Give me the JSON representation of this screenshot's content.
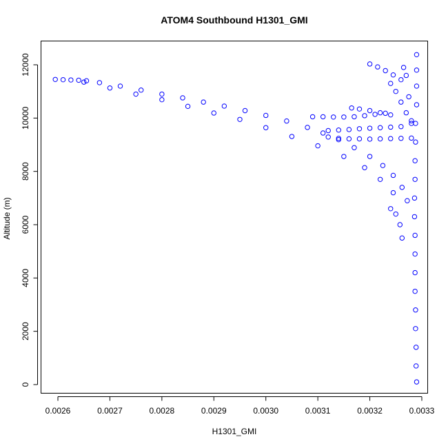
{
  "chart_data": {
    "type": "scatter",
    "title": "ATOM4 Southbound H1301_GMI",
    "xlabel": "H1301_GMI",
    "ylabel": "Altitude (m)",
    "xlim": [
      0.00259,
      0.0033
    ],
    "ylim": [
      0,
      12400
    ],
    "xticks": [
      0.0026,
      0.0027,
      0.0028,
      0.0029,
      0.003,
      0.0031,
      0.0032,
      0.0033
    ],
    "xtick_labels": [
      "0.0026",
      "0.0027",
      "0.0028",
      "0.0029",
      "0.0030",
      "0.0031",
      "0.0032",
      "0.0033"
    ],
    "yticks": [
      0,
      2000,
      4000,
      6000,
      8000,
      10000,
      12000
    ],
    "ytick_labels": [
      "0",
      "2000",
      "4000",
      "6000",
      "8000",
      "10000",
      "12000"
    ],
    "marker": "open-circle",
    "color": "#0000ff",
    "grid": false,
    "legend": "none",
    "series": [
      {
        "values": [
          {
            "x": 0.002595,
            "y": 11450
          },
          {
            "x": 0.00261,
            "y": 11440
          },
          {
            "x": 0.002625,
            "y": 11430
          },
          {
            "x": 0.00264,
            "y": 11420
          },
          {
            "x": 0.002655,
            "y": 11400
          },
          {
            "x": 0.00268,
            "y": 11330
          },
          {
            "x": 0.00272,
            "y": 11200
          },
          {
            "x": 0.00276,
            "y": 11050
          },
          {
            "x": 0.0028,
            "y": 10900
          },
          {
            "x": 0.00284,
            "y": 10760
          },
          {
            "x": 0.00288,
            "y": 10600
          },
          {
            "x": 0.00292,
            "y": 10450
          },
          {
            "x": 0.00296,
            "y": 10280
          },
          {
            "x": 0.003,
            "y": 10100
          },
          {
            "x": 0.00304,
            "y": 9890
          },
          {
            "x": 0.00308,
            "y": 9650
          },
          {
            "x": 0.00311,
            "y": 9440
          },
          {
            "x": 0.00314,
            "y": 9190
          },
          {
            "x": 0.00317,
            "y": 8890
          },
          {
            "x": 0.0032,
            "y": 8560
          },
          {
            "x": 0.003225,
            "y": 8220
          },
          {
            "x": 0.003245,
            "y": 7850
          },
          {
            "x": 0.003262,
            "y": 7400
          },
          {
            "x": 0.003272,
            "y": 6900
          }
        ]
      },
      {
        "values": [
          {
            "x": 0.00265,
            "y": 11350
          },
          {
            "x": 0.0027,
            "y": 11130
          },
          {
            "x": 0.00275,
            "y": 10900
          },
          {
            "x": 0.0028,
            "y": 10690
          },
          {
            "x": 0.00285,
            "y": 10440
          },
          {
            "x": 0.0029,
            "y": 10190
          },
          {
            "x": 0.00295,
            "y": 9950
          },
          {
            "x": 0.003,
            "y": 9640
          },
          {
            "x": 0.00305,
            "y": 9310
          },
          {
            "x": 0.0031,
            "y": 8960
          },
          {
            "x": 0.00315,
            "y": 8560
          },
          {
            "x": 0.00319,
            "y": 8140
          },
          {
            "x": 0.00322,
            "y": 7700
          },
          {
            "x": 0.003245,
            "y": 7200
          }
        ]
      },
      {
        "values": [
          {
            "x": 0.00309,
            "y": 10050
          },
          {
            "x": 0.00311,
            "y": 10050
          },
          {
            "x": 0.00313,
            "y": 10040
          },
          {
            "x": 0.00315,
            "y": 10040
          },
          {
            "x": 0.00317,
            "y": 10050
          },
          {
            "x": 0.00319,
            "y": 10090
          },
          {
            "x": 0.00321,
            "y": 10140
          },
          {
            "x": 0.00323,
            "y": 10180
          }
        ]
      },
      {
        "values": [
          {
            "x": 0.00312,
            "y": 9530
          },
          {
            "x": 0.00314,
            "y": 9550
          },
          {
            "x": 0.00316,
            "y": 9570
          },
          {
            "x": 0.00318,
            "y": 9600
          },
          {
            "x": 0.0032,
            "y": 9620
          },
          {
            "x": 0.00322,
            "y": 9640
          },
          {
            "x": 0.00324,
            "y": 9660
          },
          {
            "x": 0.00326,
            "y": 9680
          }
        ]
      },
      {
        "values": [
          {
            "x": 0.00312,
            "y": 9290
          },
          {
            "x": 0.00314,
            "y": 9240
          },
          {
            "x": 0.00316,
            "y": 9220
          },
          {
            "x": 0.00318,
            "y": 9220
          },
          {
            "x": 0.0032,
            "y": 9210
          },
          {
            "x": 0.00322,
            "y": 9220
          },
          {
            "x": 0.00324,
            "y": 9230
          },
          {
            "x": 0.00326,
            "y": 9240
          },
          {
            "x": 0.00328,
            "y": 9250
          }
        ]
      },
      {
        "values": [
          {
            "x": 0.003165,
            "y": 10380
          },
          {
            "x": 0.00318,
            "y": 10340
          },
          {
            "x": 0.0032,
            "y": 10280
          },
          {
            "x": 0.00322,
            "y": 10200
          },
          {
            "x": 0.00324,
            "y": 10120
          }
        ]
      },
      {
        "values": [
          {
            "x": 0.0032,
            "y": 12030
          },
          {
            "x": 0.003215,
            "y": 11920
          },
          {
            "x": 0.00323,
            "y": 11780
          },
          {
            "x": 0.003245,
            "y": 11620
          },
          {
            "x": 0.00326,
            "y": 11440
          }
        ]
      },
      {
        "values": [
          {
            "x": 0.00324,
            "y": 11300
          },
          {
            "x": 0.00325,
            "y": 11000
          },
          {
            "x": 0.00326,
            "y": 10600
          },
          {
            "x": 0.00327,
            "y": 10200
          },
          {
            "x": 0.00328,
            "y": 9800
          }
        ]
      },
      {
        "values": [
          {
            "x": 0.00324,
            "y": 6600
          },
          {
            "x": 0.00325,
            "y": 6400
          },
          {
            "x": 0.003258,
            "y": 6000
          },
          {
            "x": 0.003262,
            "y": 5500
          }
        ]
      },
      {
        "values": [
          {
            "x": 0.003265,
            "y": 11900
          },
          {
            "x": 0.00327,
            "y": 11600
          },
          {
            "x": 0.003275,
            "y": 10800
          },
          {
            "x": 0.00328,
            "y": 9900
          }
        ]
      },
      {
        "values": [
          {
            "x": 0.00329,
            "y": 12380
          },
          {
            "x": 0.00329,
            "y": 11800
          },
          {
            "x": 0.00329,
            "y": 11200
          },
          {
            "x": 0.00329,
            "y": 10500
          },
          {
            "x": 0.003288,
            "y": 9800
          },
          {
            "x": 0.003288,
            "y": 9100
          },
          {
            "x": 0.003287,
            "y": 8400
          },
          {
            "x": 0.003287,
            "y": 7700
          },
          {
            "x": 0.003286,
            "y": 7000
          },
          {
            "x": 0.003286,
            "y": 6300
          },
          {
            "x": 0.003287,
            "y": 5600
          },
          {
            "x": 0.003287,
            "y": 4900
          },
          {
            "x": 0.003287,
            "y": 4200
          },
          {
            "x": 0.003287,
            "y": 3500
          },
          {
            "x": 0.003288,
            "y": 2800
          },
          {
            "x": 0.003288,
            "y": 2100
          },
          {
            "x": 0.003289,
            "y": 1400
          },
          {
            "x": 0.003289,
            "y": 700
          },
          {
            "x": 0.00329,
            "y": 100
          }
        ]
      }
    ]
  }
}
